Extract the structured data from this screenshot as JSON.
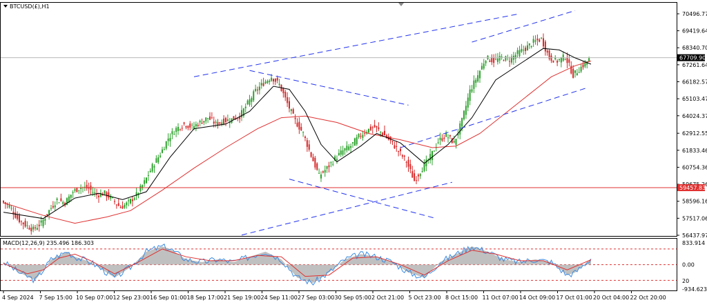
{
  "title": "BTCUSD(£),H1",
  "macd_label": "MACD(12,26,9) 235.496 186.303",
  "colors": {
    "bull": "#2ca02c",
    "bear": "#d62728",
    "ma_fast": "#000000",
    "ma_slow": "#e03030",
    "trendline": "#2233ee",
    "hline": "#e03030",
    "histogram": "#b0b0b0",
    "macd_signal": "#e03030",
    "macd_main": "#3b8be0"
  },
  "chart_data": {
    "type": "candlestick",
    "symbol": "BTCUSD(£)",
    "timeframe": "H1",
    "ylim": [
      56437.97,
      70496.77
    ],
    "price_ticks": [
      "70496.77",
      "69419.64",
      "68340.70",
      "67261.64",
      "66182.57",
      "65103.47",
      "64024.37",
      "62912.55",
      "61833.46",
      "60754.36",
      "59675.26",
      "58596.16",
      "57517.06",
      "56437.97"
    ],
    "date_labels": [
      "4 Sep 2024",
      "7 Sep 15:00",
      "10 Sep 07:00",
      "12 Sep 23:00",
      "16 Sep 01:00",
      "18 Sep 17:00",
      "21 Sep 19:00",
      "24 Sep 11:00",
      "27 Sep 03:00",
      "30 Sep 05:00",
      "2 Oct 21:00",
      "5 Oct 23:00",
      "8 Oct 15:00",
      "11 Oct 07:00",
      "14 Oct 09:00",
      "17 Oct 01:00",
      "20 Oct 04:00",
      "22 Oct 20:00"
    ],
    "current_price": "67709.90",
    "horizontal_level": "59457.83",
    "close_path": [
      [
        0,
        58600
      ],
      [
        2,
        58300
      ],
      [
        4,
        57500
      ],
      [
        6,
        57100
      ],
      [
        8,
        56800
      ],
      [
        10,
        57200
      ],
      [
        12,
        58000
      ],
      [
        14,
        58700
      ],
      [
        16,
        58500
      ],
      [
        18,
        59200
      ],
      [
        20,
        59500
      ],
      [
        22,
        59400
      ],
      [
        24,
        59000
      ],
      [
        26,
        59100
      ],
      [
        28,
        58700
      ],
      [
        30,
        58200
      ],
      [
        32,
        58500
      ],
      [
        34,
        59000
      ],
      [
        36,
        59800
      ],
      [
        38,
        60800
      ],
      [
        40,
        61600
      ],
      [
        42,
        62600
      ],
      [
        44,
        63200
      ],
      [
        46,
        63500
      ],
      [
        48,
        63300
      ],
      [
        50,
        63600
      ],
      [
        52,
        63900
      ],
      [
        54,
        63500
      ],
      [
        56,
        63700
      ],
      [
        58,
        63800
      ],
      [
        60,
        64000
      ],
      [
        62,
        64800
      ],
      [
        64,
        65600
      ],
      [
        66,
        66100
      ],
      [
        68,
        66500
      ],
      [
        70,
        66000
      ],
      [
        72,
        64800
      ],
      [
        74,
        63700
      ],
      [
        76,
        62900
      ],
      [
        78,
        61500
      ],
      [
        80,
        60200
      ],
      [
        82,
        60700
      ],
      [
        84,
        61300
      ],
      [
        86,
        61800
      ],
      [
        88,
        62100
      ],
      [
        90,
        62700
      ],
      [
        92,
        63100
      ],
      [
        94,
        63300
      ],
      [
        96,
        62900
      ],
      [
        98,
        62400
      ],
      [
        100,
        61800
      ],
      [
        102,
        61100
      ],
      [
        104,
        59900
      ],
      [
        106,
        60700
      ],
      [
        108,
        61400
      ],
      [
        110,
        62400
      ],
      [
        112,
        62800
      ],
      [
        114,
        62300
      ],
      [
        116,
        63700
      ],
      [
        118,
        65600
      ],
      [
        120,
        66600
      ],
      [
        122,
        67700
      ],
      [
        124,
        67500
      ],
      [
        126,
        67700
      ],
      [
        128,
        67600
      ],
      [
        130,
        68000
      ],
      [
        132,
        68300
      ],
      [
        134,
        68700
      ],
      [
        136,
        68900
      ],
      [
        138,
        67700
      ],
      [
        140,
        67500
      ],
      [
        142,
        67800
      ],
      [
        144,
        66600
      ],
      [
        146,
        67100
      ],
      [
        148,
        67600
      ]
    ],
    "sma_fast_path": [
      [
        0,
        57900
      ],
      [
        10,
        57500
      ],
      [
        18,
        58800
      ],
      [
        24,
        59100
      ],
      [
        30,
        58700
      ],
      [
        36,
        59200
      ],
      [
        42,
        61400
      ],
      [
        48,
        63200
      ],
      [
        56,
        63500
      ],
      [
        62,
        64300
      ],
      [
        68,
        65900
      ],
      [
        72,
        65700
      ],
      [
        76,
        64300
      ],
      [
        80,
        62200
      ],
      [
        84,
        61100
      ],
      [
        90,
        62100
      ],
      [
        94,
        62900
      ],
      [
        100,
        62300
      ],
      [
        106,
        61000
      ],
      [
        112,
        62200
      ],
      [
        118,
        63900
      ],
      [
        124,
        66300
      ],
      [
        130,
        67300
      ],
      [
        136,
        68300
      ],
      [
        140,
        68200
      ],
      [
        144,
        67700
      ],
      [
        148,
        67300
      ]
    ],
    "sma_slow_path": [
      [
        0,
        58500
      ],
      [
        10,
        57700
      ],
      [
        18,
        57200
      ],
      [
        26,
        57600
      ],
      [
        32,
        58000
      ],
      [
        40,
        59300
      ],
      [
        48,
        60700
      ],
      [
        56,
        62000
      ],
      [
        64,
        63200
      ],
      [
        70,
        63900
      ],
      [
        76,
        64000
      ],
      [
        84,
        63600
      ],
      [
        92,
        62900
      ],
      [
        100,
        62500
      ],
      [
        108,
        62000
      ],
      [
        114,
        62100
      ],
      [
        120,
        62900
      ],
      [
        126,
        64100
      ],
      [
        132,
        65300
      ],
      [
        138,
        66500
      ],
      [
        144,
        67200
      ],
      [
        148,
        67500
      ]
    ],
    "trendlines": [
      {
        "name": "upper-channel-line",
        "points": [
          [
            48,
            66500
          ],
          [
            130,
            70500
          ]
        ]
      },
      {
        "name": "outer-upper-channel-line",
        "points": [
          [
            118,
            68700
          ],
          [
            144,
            70700
          ]
        ]
      },
      {
        "name": "lower-channel-line",
        "points": [
          [
            60,
            56450
          ],
          [
            113,
            59800
          ]
        ]
      },
      {
        "name": "lower-right-channel-line",
        "points": [
          [
            100,
            62000
          ],
          [
            147,
            65800
          ]
        ]
      },
      {
        "name": "flag-upper-line",
        "points": [
          [
            62,
            66900
          ],
          [
            102,
            64700
          ]
        ]
      },
      {
        "name": "flag-lower-line",
        "points": [
          [
            72,
            60000
          ],
          [
            109,
            57500
          ]
        ]
      }
    ],
    "macd": {
      "main_label": "235.496",
      "signal_label": "186.303",
      "ticks": [
        "833.914",
        "0.00",
        "-934.623"
      ],
      "left_tick": "20",
      "ylim": [
        -934.623,
        833.914
      ],
      "dashed_levels": [
        600,
        0,
        -600
      ],
      "main_path": [
        [
          0,
          100
        ],
        [
          4,
          -300
        ],
        [
          8,
          -600
        ],
        [
          12,
          200
        ],
        [
          16,
          500
        ],
        [
          18,
          300
        ],
        [
          22,
          100
        ],
        [
          26,
          -300
        ],
        [
          28,
          -500
        ],
        [
          32,
          -100
        ],
        [
          36,
          500
        ],
        [
          40,
          700
        ],
        [
          42,
          600
        ],
        [
          46,
          200
        ],
        [
          50,
          100
        ],
        [
          54,
          200
        ],
        [
          58,
          100
        ],
        [
          62,
          300
        ],
        [
          66,
          500
        ],
        [
          70,
          200
        ],
        [
          74,
          -500
        ],
        [
          78,
          -700
        ],
        [
          82,
          -300
        ],
        [
          86,
          200
        ],
        [
          90,
          400
        ],
        [
          94,
          300
        ],
        [
          98,
          100
        ],
        [
          102,
          -300
        ],
        [
          106,
          -500
        ],
        [
          110,
          100
        ],
        [
          114,
          400
        ],
        [
          118,
          700
        ],
        [
          122,
          500
        ],
        [
          126,
          200
        ],
        [
          130,
          100
        ],
        [
          134,
          200
        ],
        [
          138,
          100
        ],
        [
          142,
          -400
        ],
        [
          144,
          -300
        ],
        [
          148,
          235
        ]
      ],
      "signal_path": [
        [
          0,
          50
        ],
        [
          6,
          -350
        ],
        [
          10,
          -200
        ],
        [
          14,
          250
        ],
        [
          18,
          400
        ],
        [
          22,
          150
        ],
        [
          28,
          -350
        ],
        [
          34,
          100
        ],
        [
          40,
          600
        ],
        [
          46,
          300
        ],
        [
          52,
          150
        ],
        [
          58,
          150
        ],
        [
          64,
          350
        ],
        [
          70,
          300
        ],
        [
          76,
          -450
        ],
        [
          82,
          -400
        ],
        [
          88,
          250
        ],
        [
          94,
          300
        ],
        [
          100,
          0
        ],
        [
          106,
          -400
        ],
        [
          112,
          150
        ],
        [
          118,
          550
        ],
        [
          124,
          400
        ],
        [
          130,
          150
        ],
        [
          136,
          150
        ],
        [
          142,
          -200
        ],
        [
          148,
          186
        ]
      ]
    }
  }
}
